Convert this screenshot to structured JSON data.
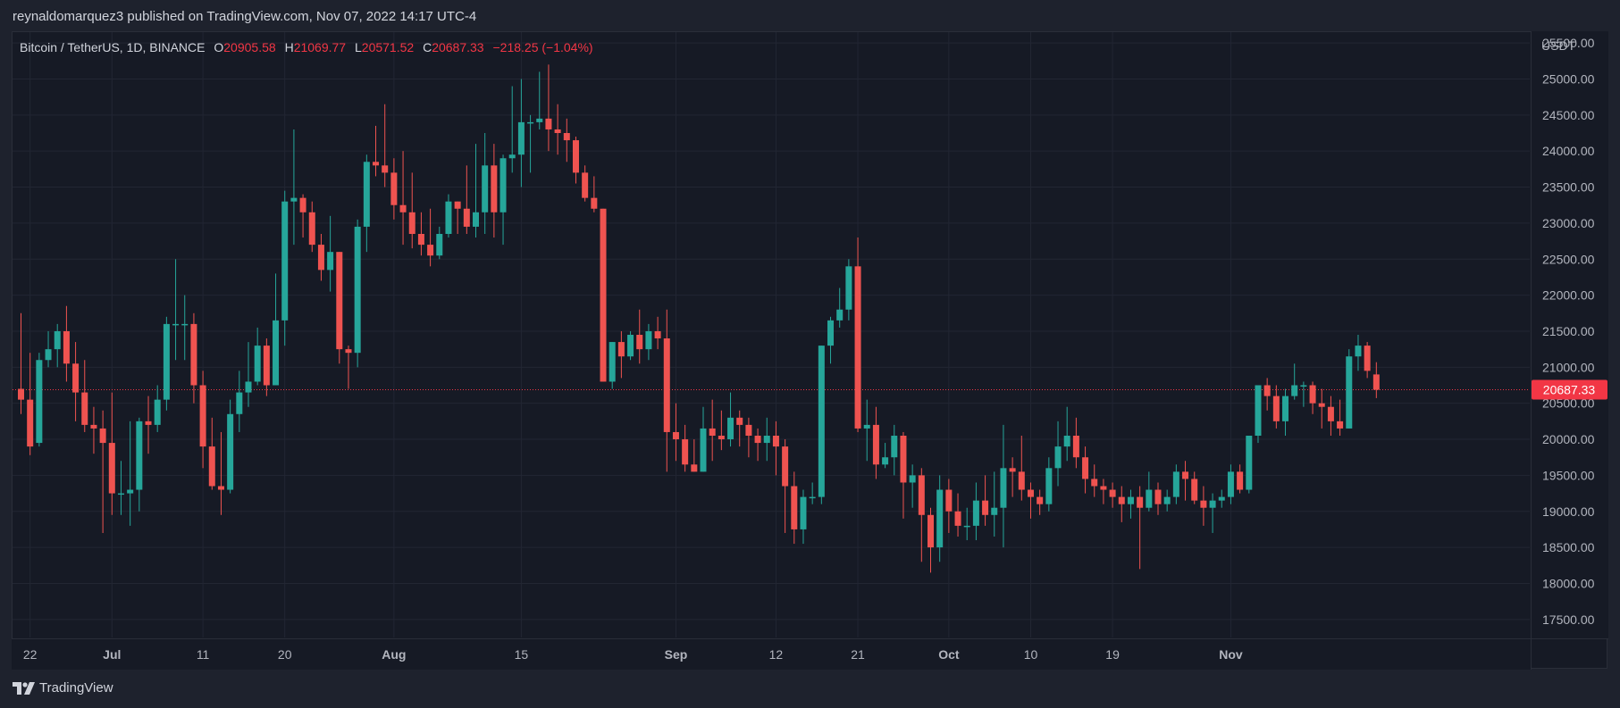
{
  "header": {
    "publisher_text": "reynaldomarquez3 published on TradingView.com, Nov 07, 2022 14:17 UTC-4"
  },
  "legend": {
    "symbol": "Bitcoin / TetherUS, 1D, BINANCE",
    "o_label": "O",
    "o_value": "20905.58",
    "h_label": "H",
    "h_value": "21069.77",
    "l_label": "L",
    "l_value": "20571.52",
    "c_label": "C",
    "c_value": "20687.33",
    "change": "−218.25 (−1.04%)"
  },
  "price_axis": {
    "currency": "USDT",
    "last_price_label": "20687.33"
  },
  "footer": {
    "brand": "TradingView",
    "icon": "tradingview-logo-icon"
  },
  "colors": {
    "background": "#161a25",
    "up": "#26a69a",
    "down": "#ef5350",
    "grid": "#222633",
    "last_price": "#f23645"
  },
  "chart_data": {
    "type": "candlestick",
    "title": "Bitcoin / TetherUS, 1D, BINANCE",
    "y_unit": "USDT",
    "ylim": [
      17250,
      25650
    ],
    "y_ticks": [
      "17500.00",
      "18000.00",
      "18500.00",
      "19000.00",
      "19500.00",
      "20000.00",
      "20500.00",
      "21000.00",
      "21500.00",
      "22000.00",
      "22500.00",
      "23000.00",
      "23500.00",
      "24000.00",
      "24500.00",
      "25000.00",
      "25500.00"
    ],
    "x_ticks": [
      "22",
      "Jul",
      "11",
      "20",
      "Aug",
      "15",
      "Sep",
      "12",
      "21",
      "Oct",
      "10",
      "19",
      "Nov"
    ],
    "x_tick_dates": [
      "2022-06-22",
      "2022-07-01",
      "2022-07-11",
      "2022-07-20",
      "2022-08-01",
      "2022-08-15",
      "2022-09-01",
      "2022-09-12",
      "2022-09-21",
      "2022-10-01",
      "2022-10-10",
      "2022-10-19",
      "2022-11-01"
    ],
    "grid": true,
    "last_price": 20687.33,
    "start_date": "2022-06-21",
    "candles": [
      [
        20700,
        20550,
        21750,
        20350
      ],
      [
        20550,
        19900,
        21200,
        19780
      ],
      [
        19950,
        21100,
        21200,
        19900
      ],
      [
        21100,
        21250,
        21500,
        21000
      ],
      [
        21250,
        21500,
        21600,
        21000
      ],
      [
        21500,
        21050,
        21850,
        20800
      ],
      [
        21050,
        20650,
        21350,
        20250
      ],
      [
        20650,
        20200,
        21100,
        20100
      ],
      [
        20200,
        20150,
        20450,
        19800
      ],
      [
        20150,
        19950,
        20400,
        18700
      ],
      [
        19950,
        19250,
        20650,
        18950
      ],
      [
        19250,
        19250,
        19700,
        18950
      ],
      [
        19250,
        19300,
        20250,
        18800
      ],
      [
        19300,
        20250,
        20300,
        19000
      ],
      [
        20250,
        20200,
        20600,
        19800
      ],
      [
        20200,
        20550,
        20750,
        20100
      ],
      [
        20550,
        21600,
        21700,
        20400
      ],
      [
        21600,
        21600,
        22500,
        21100
      ],
      [
        21600,
        21600,
        22000,
        21100
      ],
      [
        21600,
        20750,
        21750,
        20500
      ],
      [
        20750,
        19900,
        20950,
        19600
      ],
      [
        19900,
        19350,
        20300,
        19300
      ],
      [
        19350,
        19300,
        20100,
        18950
      ],
      [
        19300,
        20350,
        20550,
        19250
      ],
      [
        20350,
        20650,
        20950,
        20100
      ],
      [
        20650,
        20800,
        21350,
        20450
      ],
      [
        20800,
        21300,
        21550,
        20750
      ],
      [
        21300,
        20750,
        21400,
        20600
      ],
      [
        20750,
        21650,
        22300,
        20750
      ],
      [
        21650,
        23300,
        23450,
        21300
      ],
      [
        23300,
        23350,
        24300,
        22700
      ],
      [
        23350,
        23150,
        23400,
        22800
      ],
      [
        23150,
        22700,
        23300,
        22600
      ],
      [
        22700,
        22350,
        22850,
        22200
      ],
      [
        22350,
        22600,
        23100,
        22050
      ],
      [
        22600,
        21250,
        22600,
        21050
      ],
      [
        21250,
        21200,
        21300,
        20700
      ],
      [
        21200,
        22950,
        23050,
        21000
      ],
      [
        22950,
        23850,
        23950,
        22600
      ],
      [
        23850,
        23800,
        24350,
        23650
      ],
      [
        23800,
        23700,
        24650,
        23500
      ],
      [
        23700,
        23250,
        23900,
        23050
      ],
      [
        23250,
        23150,
        24000,
        22700
      ],
      [
        23150,
        22850,
        23700,
        22650
      ],
      [
        22850,
        22700,
        23150,
        22550
      ],
      [
        22700,
        22550,
        23200,
        22400
      ],
      [
        22550,
        22850,
        22950,
        22500
      ],
      [
        22850,
        23300,
        23400,
        22800
      ],
      [
        23300,
        23200,
        23300,
        22850
      ],
      [
        23200,
        22950,
        23800,
        22850
      ],
      [
        22950,
        23150,
        24100,
        22800
      ],
      [
        23150,
        23800,
        24250,
        22850
      ],
      [
        23800,
        23150,
        24100,
        22800
      ],
      [
        23150,
        23900,
        23950,
        22700
      ],
      [
        23900,
        23950,
        24900,
        23700
      ],
      [
        23950,
        24400,
        25000,
        23500
      ],
      [
        24400,
        24400,
        24500,
        23700
      ],
      [
        24400,
        24450,
        25100,
        24300
      ],
      [
        24450,
        24300,
        25200,
        24000
      ],
      [
        24300,
        24250,
        24650,
        23950
      ],
      [
        24250,
        24150,
        24450,
        23850
      ],
      [
        24150,
        23700,
        24200,
        23550
      ],
      [
        23700,
        23350,
        23800,
        23300
      ],
      [
        23350,
        23200,
        23650,
        23150
      ],
      [
        23200,
        20800,
        23200,
        20800
      ],
      [
        20800,
        21350,
        21350,
        20700
      ],
      [
        21350,
        21150,
        21500,
        20850
      ],
      [
        21150,
        21450,
        21500,
        21100
      ],
      [
        21450,
        21250,
        21800,
        21050
      ],
      [
        21250,
        21500,
        21600,
        21100
      ],
      [
        21500,
        21400,
        21700,
        21250
      ],
      [
        21400,
        20100,
        21800,
        19550
      ],
      [
        20100,
        20000,
        20500,
        19700
      ],
      [
        20000,
        19650,
        20200,
        19550
      ],
      [
        19650,
        19550,
        20000,
        19550
      ],
      [
        19550,
        20150,
        20450,
        19550
      ],
      [
        20150,
        20050,
        20550,
        19700
      ],
      [
        20050,
        20000,
        20400,
        19850
      ],
      [
        20000,
        20300,
        20650,
        19900
      ],
      [
        20300,
        20200,
        20400,
        19900
      ],
      [
        20200,
        20050,
        20300,
        19750
      ],
      [
        20050,
        19950,
        20150,
        19700
      ],
      [
        19950,
        20050,
        20300,
        19700
      ],
      [
        20050,
        19900,
        20250,
        19500
      ],
      [
        19900,
        19350,
        20000,
        18700
      ],
      [
        19350,
        18750,
        19550,
        18550
      ],
      [
        18750,
        19200,
        19300,
        18550
      ],
      [
        19200,
        19200,
        19400,
        19100
      ],
      [
        19200,
        21300,
        21300,
        19100
      ],
      [
        21300,
        21650,
        21700,
        21050
      ],
      [
        21650,
        21800,
        22100,
        21550
      ],
      [
        21800,
        22400,
        22500,
        21650
      ],
      [
        22400,
        20150,
        22800,
        20100
      ],
      [
        20150,
        20200,
        20550,
        19700
      ],
      [
        20200,
        19650,
        20450,
        19450
      ],
      [
        19650,
        19750,
        19950,
        19600
      ],
      [
        19750,
        20050,
        20200,
        19500
      ],
      [
        20050,
        19400,
        20100,
        18900
      ],
      [
        19400,
        19500,
        19650,
        19050
      ],
      [
        19500,
        18950,
        19600,
        18300
      ],
      [
        18950,
        18500,
        19050,
        18150
      ],
      [
        18500,
        19300,
        19500,
        18300
      ],
      [
        19300,
        19000,
        19450,
        18700
      ],
      [
        19000,
        18800,
        19250,
        18650
      ],
      [
        18800,
        18800,
        19050,
        18600
      ],
      [
        18800,
        19150,
        19400,
        18600
      ],
      [
        19150,
        18950,
        19500,
        18800
      ],
      [
        18950,
        19050,
        19550,
        18650
      ],
      [
        19050,
        19600,
        20200,
        18500
      ],
      [
        19600,
        19550,
        19750,
        19200
      ],
      [
        19550,
        19300,
        20050,
        19150
      ],
      [
        19300,
        19200,
        19400,
        18900
      ],
      [
        19200,
        19100,
        19300,
        18950
      ],
      [
        19100,
        19600,
        19750,
        19000
      ],
      [
        19600,
        19900,
        20250,
        19350
      ],
      [
        19900,
        20050,
        20450,
        19700
      ],
      [
        20050,
        19750,
        20300,
        19600
      ],
      [
        19750,
        19450,
        19900,
        19250
      ],
      [
        19450,
        19350,
        19650,
        19200
      ],
      [
        19350,
        19300,
        19450,
        19100
      ],
      [
        19300,
        19200,
        19400,
        19050
      ],
      [
        19200,
        19100,
        19350,
        18850
      ],
      [
        19100,
        19200,
        19300,
        18900
      ],
      [
        19200,
        19050,
        19350,
        18200
      ],
      [
        19050,
        19300,
        19550,
        19000
      ],
      [
        19300,
        19100,
        19400,
        18950
      ],
      [
        19100,
        19200,
        19300,
        19000
      ],
      [
        19200,
        19550,
        19650,
        19100
      ],
      [
        19550,
        19450,
        19700,
        19150
      ],
      [
        19450,
        19150,
        19550,
        19100
      ],
      [
        19150,
        19050,
        19350,
        18800
      ],
      [
        19050,
        19150,
        19250,
        18700
      ],
      [
        19150,
        19200,
        19300,
        19050
      ],
      [
        19200,
        19550,
        19650,
        19100
      ],
      [
        19550,
        19300,
        19650,
        19250
      ],
      [
        19300,
        20050,
        20050,
        19250
      ],
      [
        20050,
        20750,
        20750,
        19950
      ],
      [
        20750,
        20600,
        20850,
        20400
      ],
      [
        20600,
        20250,
        20750,
        20150
      ],
      [
        20250,
        20600,
        20700,
        20050
      ],
      [
        20600,
        20750,
        21050,
        20550
      ],
      [
        20750,
        20750,
        20800,
        20450
      ],
      [
        20750,
        20500,
        20800,
        20350
      ],
      [
        20500,
        20450,
        20700,
        20150
      ],
      [
        20450,
        20250,
        20600,
        20050
      ],
      [
        20250,
        20150,
        20550,
        20050
      ],
      [
        20150,
        21150,
        21250,
        20150
      ],
      [
        21150,
        21300,
        21450,
        20950
      ],
      [
        21300,
        20950,
        21350,
        20850
      ],
      [
        20900,
        20687.33,
        21069.77,
        20571.52
      ]
    ]
  }
}
